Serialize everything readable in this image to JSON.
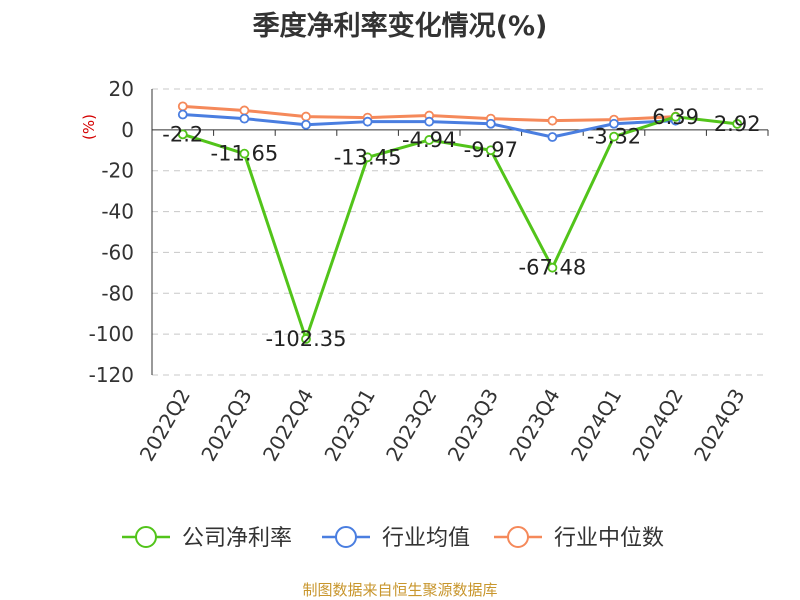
{
  "title": "季度净利率变化情况(%)",
  "source": "制图数据来自恒生聚源数据库",
  "chart_data": {
    "type": "line",
    "title": "季度净利率变化情况(%)",
    "ylabel": "(%)",
    "xlabel": "",
    "ylim": [
      -120,
      20
    ],
    "yticks": [
      20,
      0,
      -20,
      -40,
      -60,
      -80,
      -100,
      -120
    ],
    "grid": true,
    "legend_position": "bottom",
    "categories": [
      "2022Q2",
      "2022Q3",
      "2022Q4",
      "2023Q1",
      "2023Q2",
      "2023Q3",
      "2023Q4",
      "2024Q1",
      "2024Q2",
      "2024Q3"
    ],
    "series": [
      {
        "name": "公司净利率",
        "color": "#52c41a",
        "values": [
          -2.2,
          -11.65,
          -102.35,
          -13.45,
          -4.94,
          -9.97,
          -67.48,
          -3.32,
          6.39,
          2.92
        ],
        "labels": [
          "-2.2",
          "-11.65",
          "-102.35",
          "-13.45",
          "-4.94",
          "-9.97",
          "-67.48",
          "-3.32",
          "6.39",
          "2.92"
        ]
      },
      {
        "name": "行业均值",
        "color": "#4a7ee0",
        "values": [
          7.5,
          5.5,
          2.5,
          4.0,
          4.0,
          3.0,
          -3.5,
          3.0,
          4.5,
          null
        ]
      },
      {
        "name": "行业中位数",
        "color": "#f5895a",
        "values": [
          11.5,
          9.5,
          6.5,
          6.0,
          7.0,
          5.5,
          4.5,
          5.0,
          6.5,
          null
        ]
      }
    ]
  }
}
